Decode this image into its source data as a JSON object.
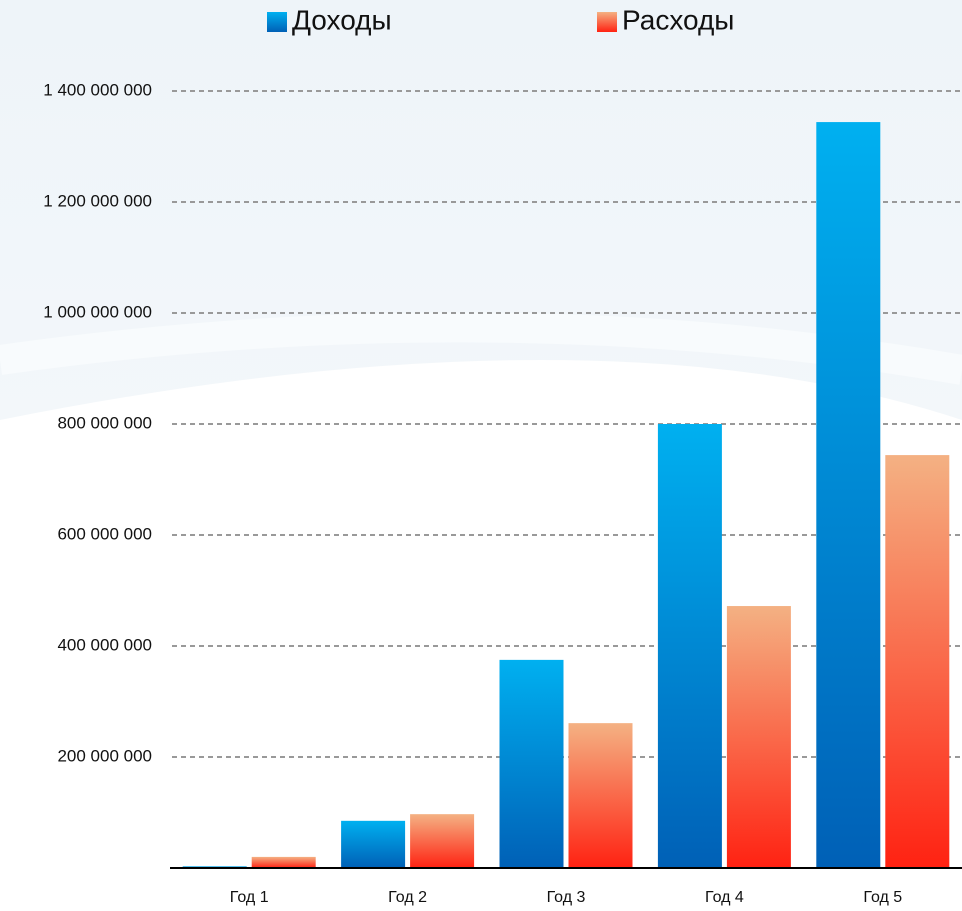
{
  "chart_data": {
    "type": "bar",
    "categories": [
      "Год 1",
      "Год 2",
      "Год 3",
      "Год 4",
      "Год 5"
    ],
    "series": [
      {
        "name": "Доходы",
        "color": [
          "#00b0f0",
          "#0060b6"
        ],
        "values": [
          3000000,
          85000000,
          375000000,
          800000000,
          1344000000
        ]
      },
      {
        "name": "Расходы",
        "color": [
          "#f4b183",
          "#ff2212"
        ],
        "values": [
          20000000,
          97000000,
          261000000,
          472000000,
          744000000
        ]
      }
    ],
    "ylim": [
      0,
      1400000000
    ],
    "yticks": [
      {
        "value": 200000000,
        "label": "200 000 000"
      },
      {
        "value": 400000000,
        "label": "400 000 000"
      },
      {
        "value": 600000000,
        "label": "600 000 000"
      },
      {
        "value": 800000000,
        "label": "800 000 000"
      },
      {
        "value": 1000000000,
        "label": "1 000 000 000"
      },
      {
        "value": 1200000000,
        "label": "1 200 000 000"
      },
      {
        "value": 1400000000,
        "label": "1 400 000 000"
      }
    ],
    "grid": true
  }
}
